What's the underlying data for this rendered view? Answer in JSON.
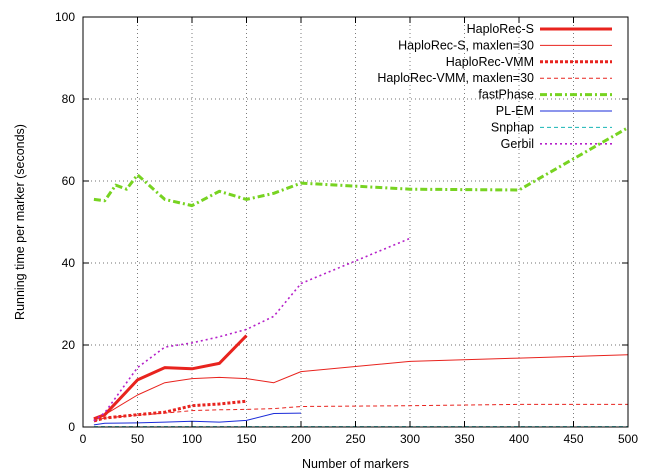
{
  "chart_data": {
    "type": "line",
    "xlabel": "Number of markers",
    "ylabel": "Running time per marker (seconds)",
    "xlim": [
      0,
      500
    ],
    "ylim": [
      0,
      100
    ],
    "xticks": [
      0,
      50,
      100,
      150,
      200,
      250,
      300,
      350,
      400,
      450,
      500
    ],
    "yticks": [
      0,
      20,
      40,
      60,
      80,
      100
    ],
    "grid": true,
    "legend_position": "top-right",
    "series": [
      {
        "name": "HaploRec-S",
        "color": "#e8231e",
        "style": "solid",
        "weight": "thick",
        "x": [
          10,
          20,
          50,
          75,
          100,
          125,
          150
        ],
        "y": [
          2.0,
          3.0,
          11.5,
          14.5,
          14.2,
          15.5,
          22.3
        ]
      },
      {
        "name": "HaploRec-S, maxlen=30",
        "color": "#e8231e",
        "style": "solid",
        "weight": "thin",
        "x": [
          10,
          20,
          50,
          75,
          100,
          125,
          150,
          175,
          200,
          300,
          400,
          500
        ],
        "y": [
          2.0,
          3.0,
          7.8,
          10.8,
          11.8,
          12.1,
          11.8,
          10.8,
          13.5,
          16.0,
          16.8,
          17.6
        ]
      },
      {
        "name": "HaploRec-VMM",
        "color": "#e8231e",
        "style": "dotted",
        "weight": "thick",
        "x": [
          10,
          20,
          50,
          75,
          100,
          125,
          150
        ],
        "y": [
          1.5,
          2.2,
          3.0,
          3.6,
          5.2,
          5.6,
          6.3
        ]
      },
      {
        "name": "HaploRec-VMM, maxlen=30",
        "color": "#e8231e",
        "style": "dashed",
        "weight": "thin",
        "x": [
          10,
          20,
          50,
          75,
          100,
          125,
          150,
          175,
          200,
          300,
          400,
          500
        ],
        "y": [
          1.5,
          2.2,
          2.9,
          3.4,
          4.0,
          4.2,
          4.3,
          4.5,
          5.0,
          5.2,
          5.5,
          5.5
        ]
      },
      {
        "name": "fastPhase",
        "color": "#77d321",
        "style": "dash-dot",
        "weight": "thick",
        "x": [
          10,
          20,
          30,
          40,
          50,
          75,
          100,
          125,
          150,
          175,
          200,
          300,
          400,
          500
        ],
        "y": [
          55.5,
          55.2,
          59.0,
          58.0,
          61.5,
          55.5,
          54.0,
          57.5,
          55.5,
          57.0,
          59.5,
          58.0,
          57.8,
          73.0
        ]
      },
      {
        "name": "PL-EM",
        "color": "#1a2bd8",
        "style": "solid",
        "weight": "thin",
        "x": [
          10,
          20,
          50,
          75,
          100,
          125,
          150,
          175,
          200
        ],
        "y": [
          0.5,
          0.9,
          1.0,
          1.2,
          1.4,
          1.2,
          1.6,
          3.3,
          3.4
        ]
      },
      {
        "name": "Snphap",
        "color": "#17b5b5",
        "style": "dashed",
        "weight": "thin",
        "x": [
          10,
          50,
          100,
          200,
          300,
          400,
          500
        ],
        "y": [
          0.1,
          0.1,
          0.1,
          0.1,
          0.1,
          0.1,
          0.1
        ]
      },
      {
        "name": "Gerbil",
        "color": "#b521c9",
        "style": "dotted",
        "weight": "medium",
        "x": [
          10,
          20,
          50,
          75,
          100,
          125,
          150,
          175,
          200,
          250,
          300
        ],
        "y": [
          1.5,
          3.5,
          14.5,
          19.5,
          20.5,
          22.0,
          23.8,
          27.0,
          35.0,
          40.5,
          46.0
        ]
      }
    ]
  }
}
